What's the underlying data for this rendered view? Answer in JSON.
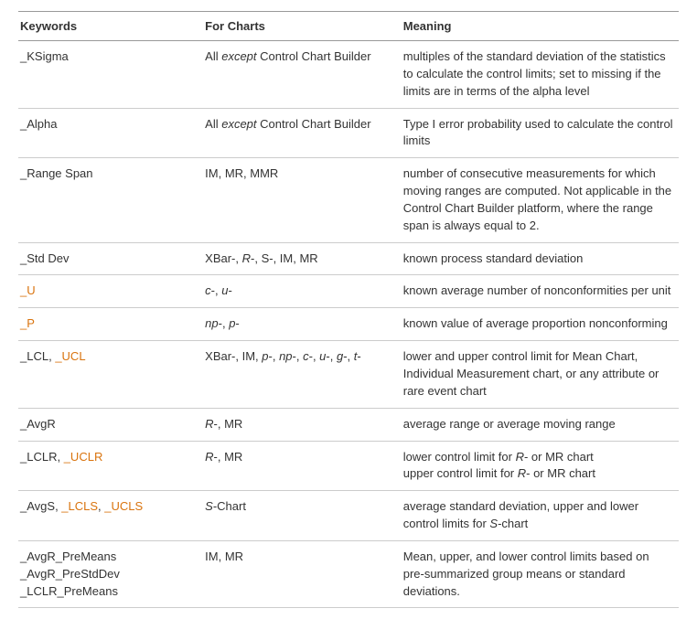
{
  "columns": {
    "keywords": "Keywords",
    "forCharts": "For Charts",
    "meaning": "Meaning"
  },
  "colWidths": [
    "28%",
    "30%",
    "42%"
  ],
  "link_color": "#d9730d",
  "rows": [
    {
      "keywordsLines": [
        {
          "parts": [
            {
              "text": "_KSigma"
            }
          ]
        }
      ],
      "forChartsParts": [
        {
          "text": "All "
        },
        {
          "text": "except",
          "italic": true
        },
        {
          "text": " Control Chart Builder"
        }
      ],
      "meaningLines": [
        "multiples of the standard deviation of the statistics to calculate the control limits; set to missing if the limits are in terms of the alpha level"
      ]
    },
    {
      "keywordsLines": [
        {
          "parts": [
            {
              "text": "_Alpha"
            }
          ]
        }
      ],
      "forChartsParts": [
        {
          "text": "All "
        },
        {
          "text": "except",
          "italic": true
        },
        {
          "text": " Control Chart Builder"
        }
      ],
      "meaningLines": [
        "Type I error probability used to calculate the control limits"
      ]
    },
    {
      "keywordsLines": [
        {
          "parts": [
            {
              "text": "_Range Span"
            }
          ]
        }
      ],
      "forChartsParts": [
        {
          "text": "IM, MR, MMR"
        }
      ],
      "meaningLines": [
        "number of consecutive measurements for which moving ranges are computed. Not applicable in the Control Chart Builder platform, where the range span is always equal to 2."
      ]
    },
    {
      "keywordsLines": [
        {
          "parts": [
            {
              "text": "_Std Dev"
            }
          ]
        }
      ],
      "forChartsParts": [
        {
          "text": "XBar-, "
        },
        {
          "text": "R",
          "italic": true
        },
        {
          "text": "-, S-, IM, MR"
        }
      ],
      "meaningLines": [
        "known process standard deviation"
      ]
    },
    {
      "keywordsLines": [
        {
          "parts": [
            {
              "text": "_U",
              "link": true
            }
          ]
        }
      ],
      "forChartsParts": [
        {
          "text": "c",
          "italic": true
        },
        {
          "text": "-, "
        },
        {
          "text": "u",
          "italic": true
        },
        {
          "text": "-"
        }
      ],
      "meaningLines": [
        "known average number of nonconformities per unit"
      ]
    },
    {
      "keywordsLines": [
        {
          "parts": [
            {
              "text": "_P",
              "link": true
            }
          ]
        }
      ],
      "forChartsParts": [
        {
          "text": "np",
          "italic": true
        },
        {
          "text": "-, "
        },
        {
          "text": "p",
          "italic": true
        },
        {
          "text": "-"
        }
      ],
      "meaningLines": [
        "known value of average proportion nonconforming"
      ]
    },
    {
      "keywordsLines": [
        {
          "parts": [
            {
              "text": "_LCL, "
            },
            {
              "text": "_UCL",
              "link": true
            }
          ]
        }
      ],
      "forChartsParts": [
        {
          "text": "XBar-, IM, "
        },
        {
          "text": "p",
          "italic": true
        },
        {
          "text": "-, "
        },
        {
          "text": "np",
          "italic": true
        },
        {
          "text": "-, "
        },
        {
          "text": "c",
          "italic": true
        },
        {
          "text": "-, "
        },
        {
          "text": "u",
          "italic": true
        },
        {
          "text": "-, "
        },
        {
          "text": "g",
          "italic": true
        },
        {
          "text": "-, "
        },
        {
          "text": "t",
          "italic": true
        },
        {
          "text": "-"
        }
      ],
      "meaningLines": [
        "lower and upper control limit for Mean Chart, Individual Measurement chart, or any attribute or rare event chart"
      ]
    },
    {
      "keywordsLines": [
        {
          "parts": [
            {
              "text": "_AvgR"
            }
          ]
        }
      ],
      "forChartsParts": [
        {
          "text": "R",
          "italic": true
        },
        {
          "text": "-, MR"
        }
      ],
      "meaningLines": [
        "average range or average moving range"
      ]
    },
    {
      "keywordsLines": [
        {
          "parts": [
            {
              "text": "_LCLR, "
            },
            {
              "text": "_UCLR",
              "link": true
            }
          ]
        }
      ],
      "forChartsParts": [
        {
          "text": "R",
          "italic": true
        },
        {
          "text": "-, MR"
        }
      ],
      "meaningLinesRich": [
        [
          {
            "text": "lower control limit for "
          },
          {
            "text": "R",
            "italic": true
          },
          {
            "text": "- or MR chart"
          }
        ],
        [
          {
            "text": "upper control limit for "
          },
          {
            "text": "R",
            "italic": true
          },
          {
            "text": "- or MR chart"
          }
        ]
      ]
    },
    {
      "keywordsLines": [
        {
          "parts": [
            {
              "text": "_AvgS, "
            },
            {
              "text": "_LCLS",
              "link": true
            },
            {
              "text": ", "
            },
            {
              "text": "_UCLS",
              "link": true
            }
          ]
        }
      ],
      "forChartsParts": [
        {
          "text": "S",
          "italic": true
        },
        {
          "text": "-Chart"
        }
      ],
      "meaningLinesRich": [
        [
          {
            "text": "average standard deviation, upper and lower control limits for "
          },
          {
            "text": "S",
            "italic": true
          },
          {
            "text": "-chart"
          }
        ]
      ]
    },
    {
      "keywordsLines": [
        {
          "parts": [
            {
              "text": "_AvgR_PreMeans"
            }
          ]
        },
        {
          "parts": [
            {
              "text": "_AvgR_PreStdDev"
            }
          ]
        },
        {
          "parts": [
            {
              "text": "_LCLR_PreMeans"
            }
          ]
        }
      ],
      "forChartsParts": [
        {
          "text": "IM, MR"
        }
      ],
      "meaningLines": [
        "Mean, upper, and lower control limits based on pre-summarized group means or standard deviations."
      ]
    }
  ]
}
